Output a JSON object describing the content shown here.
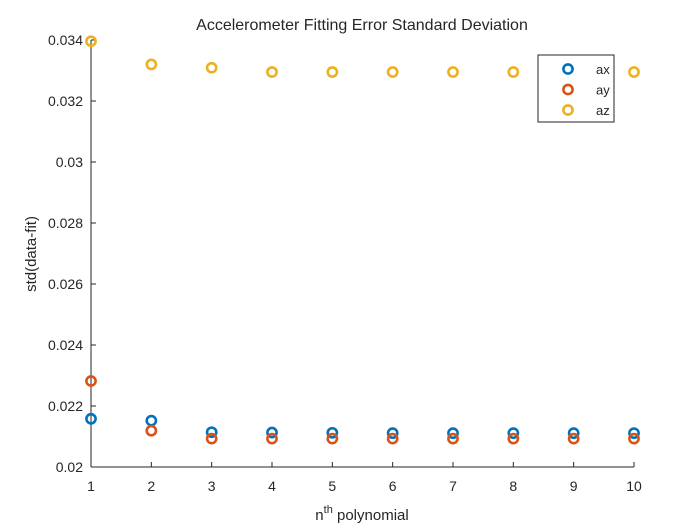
{
  "chart_data": {
    "type": "scatter",
    "title": "Accelerometer Fitting Error Standard Deviation",
    "xlabel": {
      "base": "n",
      "sup": "th",
      "rest": " polynomial"
    },
    "ylabel": "std(data-fit)",
    "xlim": [
      1,
      10
    ],
    "ylim": [
      0.02,
      0.034
    ],
    "xticks": [
      1,
      2,
      3,
      4,
      5,
      6,
      7,
      8,
      9,
      10
    ],
    "xtick_labels": [
      "1",
      "2",
      "3",
      "4",
      "5",
      "6",
      "7",
      "8",
      "9",
      "10"
    ],
    "yticks": [
      0.02,
      0.022,
      0.024,
      0.026,
      0.028,
      0.03,
      0.032,
      0.034
    ],
    "ytick_labels": [
      "0.02",
      "0.022",
      "0.024",
      "0.026",
      "0.028",
      "0.03",
      "0.032",
      "0.034"
    ],
    "grid": false,
    "legend_position": "top-right",
    "x": [
      1,
      2,
      3,
      4,
      5,
      6,
      7,
      8,
      9,
      10
    ],
    "series": [
      {
        "name": "ax",
        "color": "#0072BD",
        "values": [
          0.02158,
          0.02152,
          0.02114,
          0.02113,
          0.02112,
          0.02111,
          0.02111,
          0.02111,
          0.02111,
          0.02111
        ]
      },
      {
        "name": "ay",
        "color": "#D95319",
        "values": [
          0.02282,
          0.02119,
          0.02093,
          0.02093,
          0.02093,
          0.02093,
          0.02093,
          0.02093,
          0.02093,
          0.02093
        ]
      },
      {
        "name": "az",
        "color": "#EDB120",
        "values": [
          0.03396,
          0.0332,
          0.03309,
          0.03295,
          0.03295,
          0.03295,
          0.03295,
          0.03295,
          0.03295,
          0.03295
        ]
      }
    ]
  }
}
